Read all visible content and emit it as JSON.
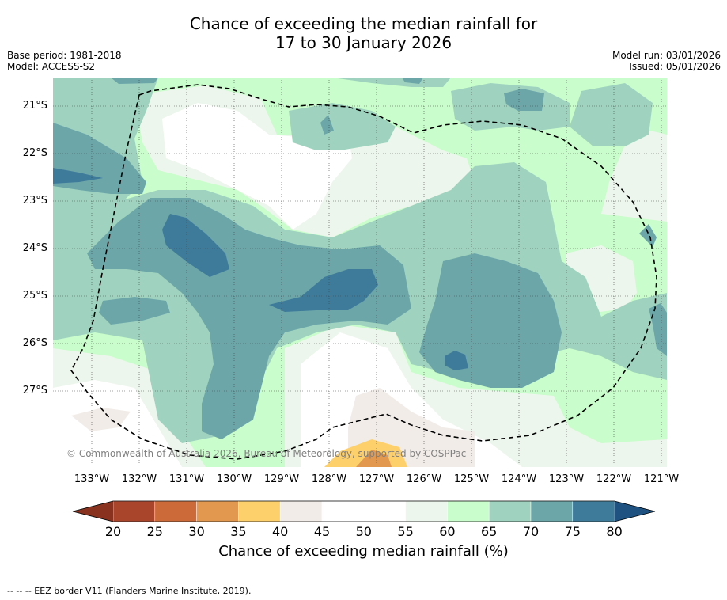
{
  "title_line1": "Chance of exceeding the median rainfall for",
  "title_line2": "17 to 30 January 2026",
  "base_period": "Base period: 1981-2018",
  "model": "Model: ACCESS-S2",
  "model_run": "Model run: 03/01/2026",
  "issued": "Issued: 05/01/2026",
  "copyright": "© Commonwealth of Australia 2026, Bureau of Meteorology, supported by COSPPac",
  "footer": "-- -- -- EEZ border V11 (Flanders Marine Institute, 2019).",
  "x_ticks": [
    "133°W",
    "132°W",
    "131°W",
    "130°W",
    "129°W",
    "128°W",
    "127°W",
    "126°W",
    "125°W",
    "124°W",
    "123°W",
    "122°W",
    "121°W"
  ],
  "y_ticks": [
    "21°S",
    "22°S",
    "23°S",
    "24°S",
    "25°S",
    "26°S",
    "27°S"
  ],
  "colorbar": {
    "labels": [
      "20",
      "25",
      "30",
      "35",
      "40",
      "45",
      "50",
      "55",
      "60",
      "65",
      "70",
      "75",
      "80"
    ],
    "colors": [
      "#a8452a",
      "#cc6a3a",
      "#e2994f",
      "#fdd06c",
      "#f1ece8",
      "#ffffff",
      "#ffffff",
      "#edf6ec",
      "#c9fdcb",
      "#9fd3bf",
      "#6ca6a9",
      "#3e7b9a"
    ],
    "low_color": "#8a3220",
    "high_color": "#1f5280",
    "title": "Chance of exceeding median rainfall (%)"
  },
  "palette": {
    "c40": "#f1ece8",
    "c55": "#edf6ec",
    "c60": "#c9fdcb",
    "c65": "#9fd3bf",
    "c70": "#6ca6a9",
    "c75": "#3e7b9a",
    "c35": "#fdd06c",
    "c30": "#e2994f"
  }
}
